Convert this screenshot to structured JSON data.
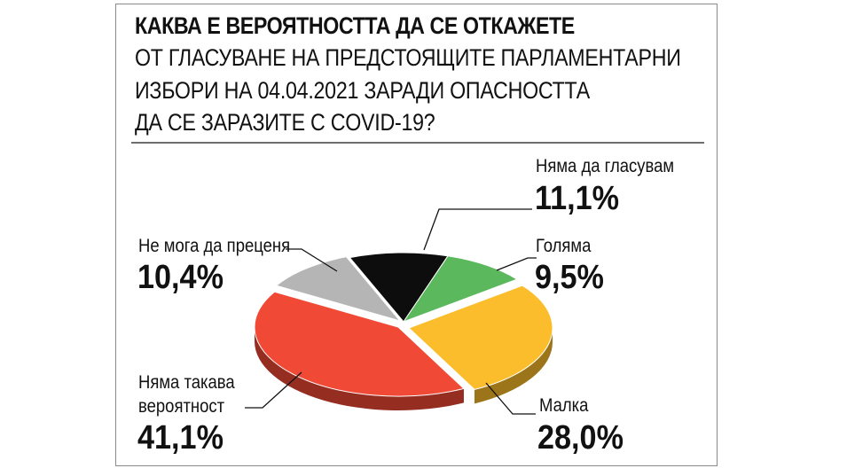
{
  "chart_data": {
    "type": "pie",
    "title": "КАКВА Е ВЕРОЯТНОСТТА ДА СЕ ОТКАЖЕТЕ",
    "subtitle_lines": [
      "ОТ ГЛАСУВАНЕ НА ПРЕДСТОЯЩИТЕ ПАРЛАМЕНТАРНИ",
      "ИЗБОРИ НА 04.04.2021 ЗАРАДИ ОПАСНОСТТА",
      "ДА СЕ ЗАРАЗИТЕ С COVID-19?"
    ],
    "slices": [
      {
        "label": "Няма да гласувам",
        "value": 11.1,
        "value_label": "11,1%",
        "color": "#0d0d0d"
      },
      {
        "label": "Голяма",
        "value": 9.5,
        "value_label": "9,5%",
        "color": "#5cb85c"
      },
      {
        "label": "Малка",
        "value": 28.0,
        "value_label": "28,0%",
        "color": "#fbbd2b"
      },
      {
        "label_lines": [
          "Няма такава",
          "вероятност"
        ],
        "value": 41.1,
        "value_label": "41,1%",
        "color": "#f04a36"
      },
      {
        "label": "Не мога да преценя",
        "value": 10.4,
        "value_label": "10,4%",
        "color": "#b5b5b5"
      }
    ]
  }
}
